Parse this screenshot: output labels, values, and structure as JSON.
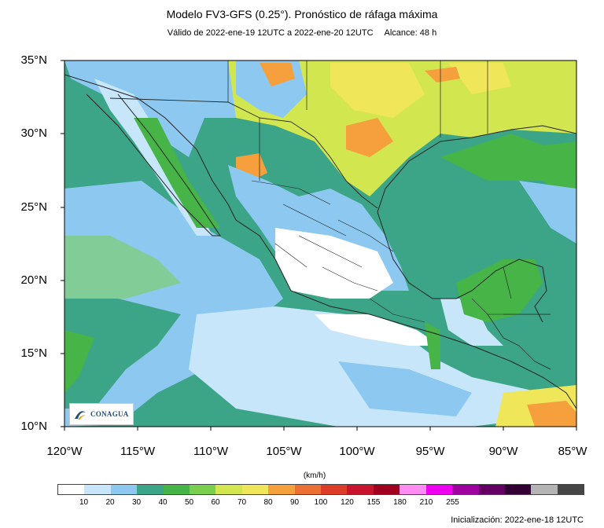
{
  "header": {
    "title": "Modelo FV3-GFS (0.25°). Pronóstico de ráfaga máxima",
    "validity": "Válido de 2022-ene-19 12UTC a 2022-ene-20 12UTC",
    "range": "Alcance: 48 h"
  },
  "axes": {
    "lat_labels": [
      "35°N",
      "30°N",
      "25°N",
      "20°N",
      "15°N",
      "10°N"
    ],
    "lon_labels": [
      "120°W",
      "115°W",
      "110°W",
      "105°W",
      "100°W",
      "95°W",
      "90°W",
      "85°W"
    ]
  },
  "colorbar": {
    "units": "(km/h)",
    "ticks": [
      "10",
      "20",
      "30",
      "40",
      "50",
      "60",
      "70",
      "80",
      "90",
      "100",
      "120",
      "155",
      "180",
      "210",
      "255"
    ],
    "colors": [
      "#ffffff",
      "#c8e6fa",
      "#8cc8f0",
      "#3ca587",
      "#46b446",
      "#7ad04e",
      "#d2e650",
      "#f0e65a",
      "#f5a03c",
      "#eb6e32",
      "#dc3c28",
      "#c8142d",
      "#a0001e",
      "#ff8cf0",
      "#f000f0",
      "#a000a0",
      "#640064",
      "#320032",
      "#b4b4b4",
      "#464646"
    ]
  },
  "logo": {
    "text": "CONAGUA"
  },
  "footer": {
    "init": "Inicialización: 2022-ene-18 12UTC"
  }
}
